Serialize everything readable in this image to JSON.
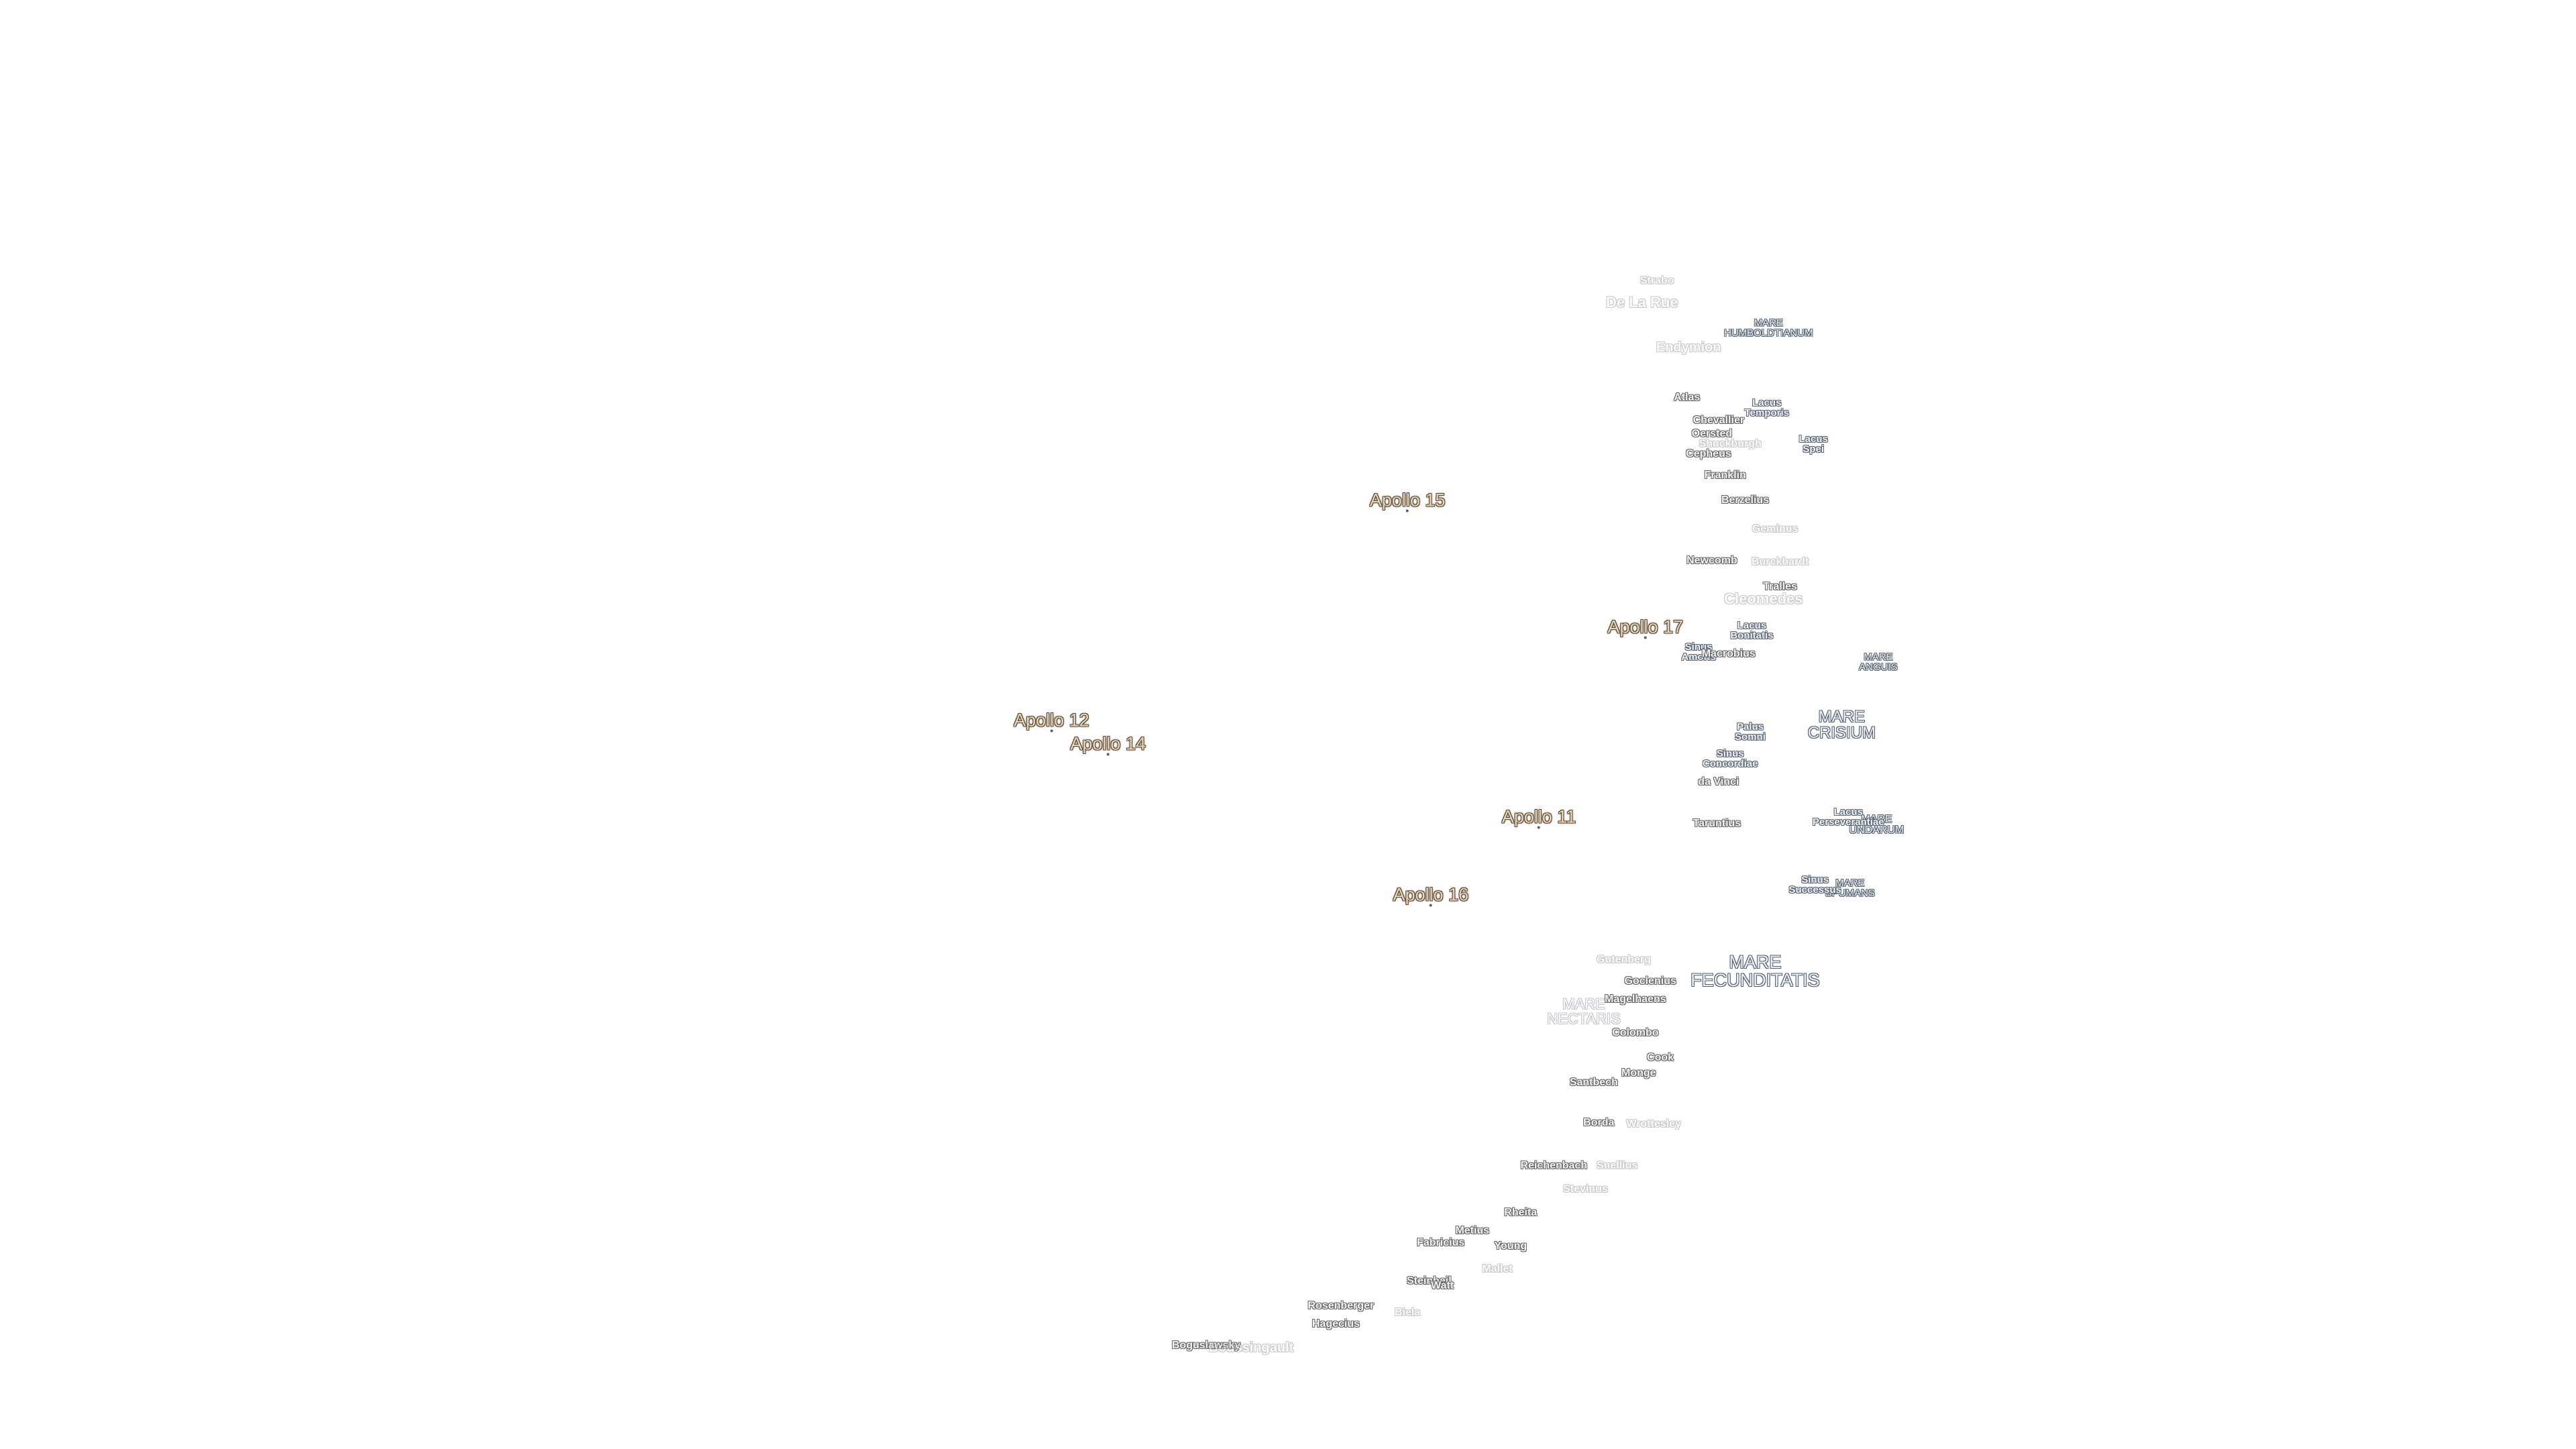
{
  "landing_sites": [
    "Apollo 15",
    "Apollo 17",
    "Apollo 12",
    "Apollo 14",
    "Apollo 11",
    "Apollo 16"
  ],
  "maria": [
    "MARE HUMBOLDTIANUM",
    "MARE ANGUIS",
    "MARE CRISIUM",
    "MARE UNDARUM",
    "MARE SPUMANS",
    "MARE FECUNDITATIS",
    "MARE NECTARIS"
  ],
  "lakes_and_bays": [
    "Lacus Temporis",
    "Lacus Spei",
    "Lacus Bonitatis",
    "Sinus Amoris",
    "Palus Somni",
    "Sinus Concordiae",
    "Lacus Perseverantiae",
    "Sinus Successus"
  ],
  "craters": [
    "Strabo",
    "De La Rue",
    "Endymion",
    "Atlas",
    "Chevallier",
    "Oersted",
    "Shuckburgh",
    "Cepheus",
    "Franklin",
    "Berzelius",
    "Geminus",
    "Newcomb",
    "Burckhardt",
    "Tralles",
    "Cleomedes",
    "Macrobius",
    "da Vinci",
    "Taruntius",
    "Gutenberg",
    "Goclenius",
    "Magelhaens",
    "Colombo",
    "Cook",
    "Monge",
    "Santbech",
    "Borda",
    "Wrottesley",
    "Reichenbach",
    "Snellius",
    "Stevinus",
    "Rheita",
    "Metius",
    "Fabricius",
    "Young",
    "Mallet",
    "Steinheil",
    "Watt",
    "Rosenberger",
    "Biela",
    "Hagecius",
    "Boguslawsky",
    "Boussingault"
  ]
}
